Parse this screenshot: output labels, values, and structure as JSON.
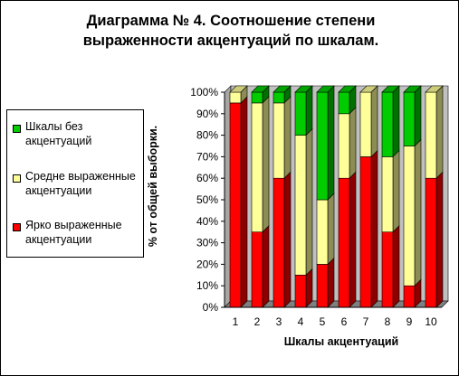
{
  "chart_data": {
    "type": "bar",
    "stacked": true,
    "title": "Диаграмма № 4. Соотношение степени выраженности акцентуаций по шкалам.",
    "xlabel": "Шкалы акцентуаций",
    "ylabel": "% от общей выборки.",
    "ylim": [
      0,
      100
    ],
    "yticks": [
      "0%",
      "10%",
      "20%",
      "30%",
      "40%",
      "50%",
      "60%",
      "70%",
      "80%",
      "90%",
      "100%"
    ],
    "categories": [
      "1",
      "2",
      "3",
      "4",
      "5",
      "6",
      "7",
      "8",
      "9",
      "10"
    ],
    "series": [
      {
        "name": "Ярко выраженные акцентуации",
        "color": "#ff0000",
        "values": [
          95,
          35,
          60,
          15,
          20,
          60,
          70,
          35,
          10,
          60
        ]
      },
      {
        "name": "Средне выраженные акцентуации",
        "color": "#ffff99",
        "values": [
          5,
          60,
          35,
          65,
          30,
          30,
          30,
          35,
          65,
          40
        ]
      },
      {
        "name": "Шкалы без акцентуаций",
        "color": "#00cc00",
        "values": [
          0,
          5,
          5,
          20,
          50,
          10,
          0,
          30,
          25,
          0
        ]
      }
    ],
    "legend_position": "left",
    "grid": false
  },
  "legend_order": [
    2,
    1,
    0
  ]
}
